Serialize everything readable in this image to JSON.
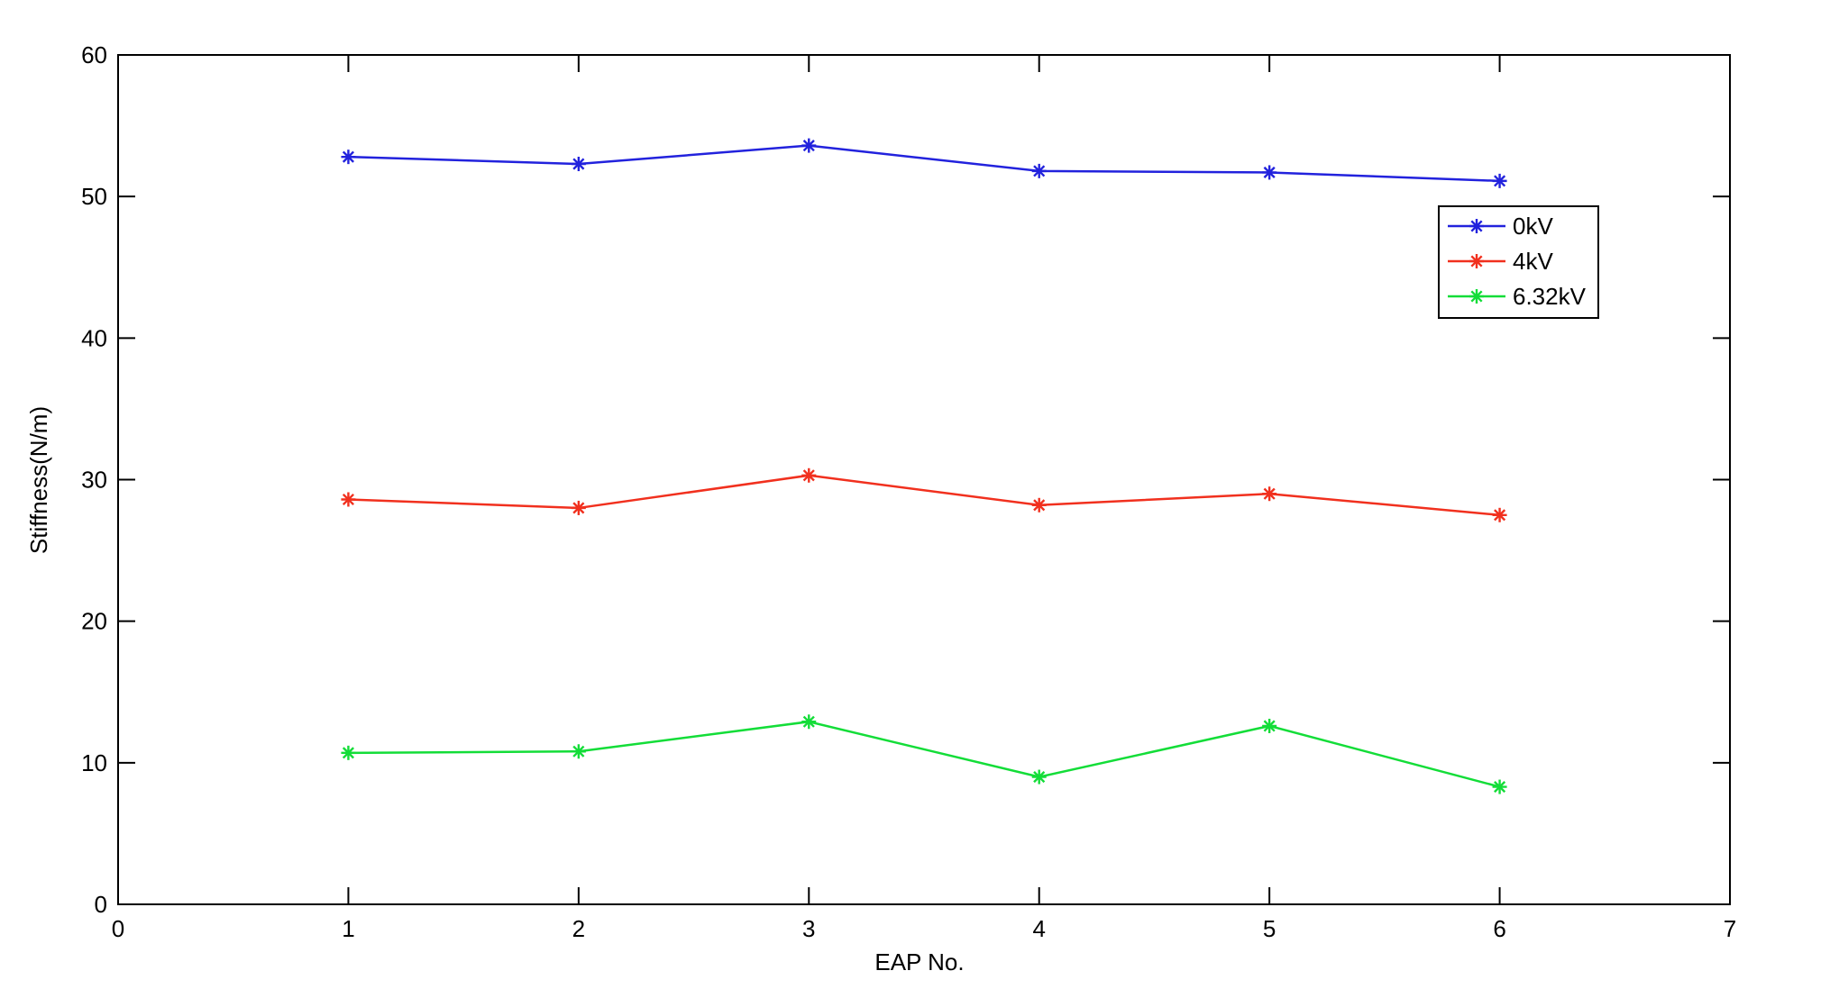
{
  "chart_data": {
    "type": "line",
    "title": "",
    "xlabel": "EAP No.",
    "ylabel": "Stiffness(N/m)",
    "xlim": [
      0,
      7
    ],
    "ylim": [
      0,
      60
    ],
    "xticks": [
      0,
      1,
      2,
      3,
      4,
      5,
      6,
      7
    ],
    "yticks": [
      0,
      10,
      20,
      30,
      40,
      50,
      60
    ],
    "grid": false,
    "frame_color": "#000000",
    "background_color": "#ffffff",
    "marker": "asterisk",
    "x": [
      1,
      2,
      3,
      4,
      5,
      6
    ],
    "series": [
      {
        "name": "0kV",
        "color": "#2222dd",
        "values": [
          52.8,
          52.3,
          53.6,
          51.8,
          51.7,
          51.1
        ]
      },
      {
        "name": "4kV",
        "color": "#f1301e",
        "values": [
          28.6,
          28.0,
          30.3,
          28.2,
          29.0,
          27.5
        ]
      },
      {
        "name": "6.32kV",
        "color": "#13dd38",
        "values": [
          10.7,
          10.8,
          12.9,
          9.0,
          12.6,
          8.3
        ]
      }
    ],
    "legend": {
      "position": "top-right",
      "entries": [
        "0kV",
        "4kV",
        "6.32kV"
      ]
    }
  }
}
